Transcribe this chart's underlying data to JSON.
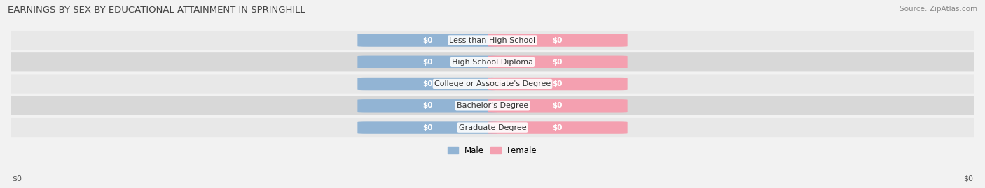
{
  "title": "EARNINGS BY SEX BY EDUCATIONAL ATTAINMENT IN SPRINGHILL",
  "source": "Source: ZipAtlas.com",
  "categories": [
    "Less than High School",
    "High School Diploma",
    "College or Associate's Degree",
    "Bachelor's Degree",
    "Graduate Degree"
  ],
  "male_values": [
    0,
    0,
    0,
    0,
    0
  ],
  "female_values": [
    0,
    0,
    0,
    0,
    0
  ],
  "male_color": "#92b4d4",
  "female_color": "#f4a0b0",
  "label_format": "$0",
  "xlabel_left": "$0",
  "xlabel_right": "$0",
  "legend_male": "Male",
  "legend_female": "Female",
  "background_color": "#f2f2f2",
  "row_bg_even": "#e8e8e8",
  "row_bg_odd": "#d8d8d8",
  "title_fontsize": 9.5,
  "source_fontsize": 7.5,
  "bar_height": 0.55,
  "bar_width": 0.25,
  "bar_gap": 0.01
}
